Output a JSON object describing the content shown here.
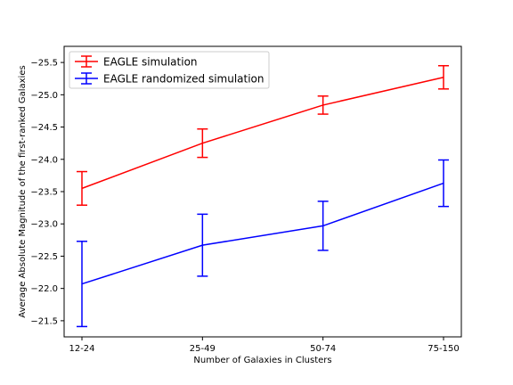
{
  "chart_data": {
    "type": "line",
    "title": "",
    "xlabel": "Number of Galaxies in Clusters",
    "ylabel": "Average Absolute Magnitude of the first-ranked Galaxies",
    "categories": [
      "12-24",
      "25-49",
      "50-74",
      "75-150"
    ],
    "y_inverted": true,
    "ylim": [
      -21.25,
      -25.75
    ],
    "yticks": [
      -21.5,
      -22.0,
      -22.5,
      -23.0,
      -23.5,
      -24.0,
      -24.5,
      -25.0,
      -25.5
    ],
    "ytick_labels": [
      "−21.5",
      "−22.0",
      "−22.5",
      "−23.0",
      "−23.5",
      "−24.0",
      "−24.5",
      "−25.0",
      "−25.5"
    ],
    "grid": false,
    "legend_position": "top-left",
    "series": [
      {
        "name": "EAGLE simulation",
        "color": "#ff0000",
        "values": [
          -23.55,
          -24.25,
          -24.84,
          -25.27
        ],
        "errors": [
          0.26,
          0.22,
          0.14,
          0.18
        ]
      },
      {
        "name": "EAGLE randomized simulation",
        "color": "#0000ff",
        "values": [
          -22.07,
          -22.67,
          -22.97,
          -23.63
        ],
        "errors": [
          0.66,
          0.48,
          0.38,
          0.36
        ]
      }
    ]
  }
}
